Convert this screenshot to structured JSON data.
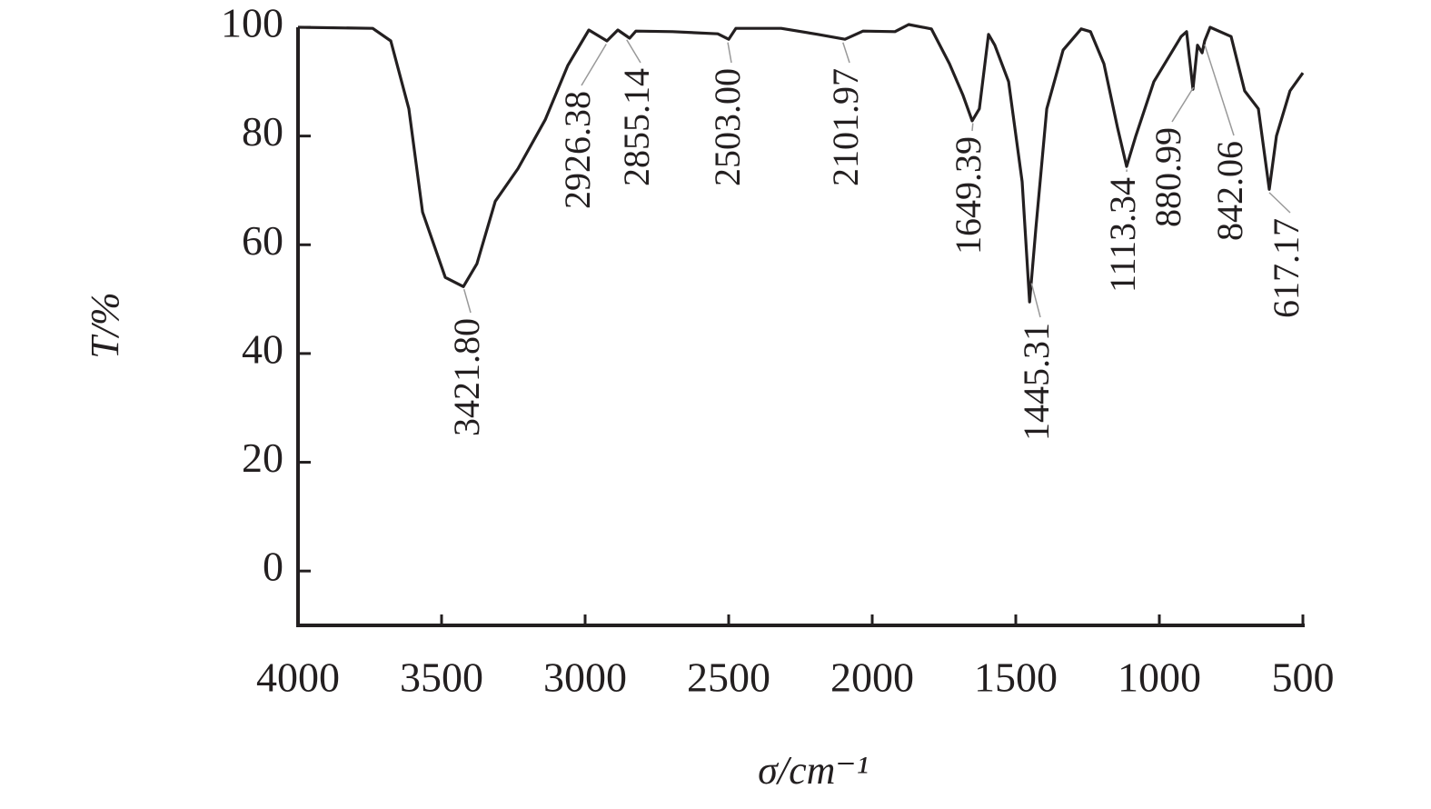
{
  "chart_data": {
    "type": "line",
    "xlabel": "σ/cm⁻¹",
    "ylabel": "T/%",
    "xlim": [
      4000,
      500
    ],
    "ylim": [
      -10,
      100
    ],
    "xticks": [
      4000,
      3500,
      3000,
      2500,
      2000,
      1500,
      1000,
      500
    ],
    "yticks": [
      0,
      20,
      40,
      60,
      80,
      100
    ],
    "color": "#231f20",
    "x": [
      4000,
      3740,
      3677,
      3614,
      3566,
      3487,
      3424,
      3377,
      3313,
      3234,
      3139,
      3060,
      2987,
      2924,
      2886,
      2845,
      2823,
      2696,
      2538,
      2500,
      2475,
      2317,
      2190,
      2095,
      2032,
      1921,
      1873,
      1794,
      1731,
      1684,
      1652,
      1627,
      1595,
      1573,
      1525,
      1478,
      1452,
      1430,
      1392,
      1335,
      1272,
      1240,
      1193,
      1146,
      1114,
      1082,
      1019,
      924,
      905,
      883,
      867,
      851,
      842,
      823,
      750,
      703,
      655,
      617,
      592,
      545,
      500
    ],
    "values": [
      100,
      99.8,
      97.5,
      85,
      66,
      54,
      52.3,
      56.5,
      68,
      74,
      83,
      93,
      99.5,
      97.5,
      99.5,
      98,
      99.3,
      99.2,
      98.8,
      97.8,
      99.8,
      99.8,
      98.7,
      97.8,
      99.3,
      99.2,
      100.5,
      99.7,
      93.3,
      87.5,
      82.8,
      85,
      98.7,
      96.7,
      90,
      71.6,
      49.5,
      63,
      85,
      95.8,
      99.7,
      99.2,
      93.3,
      81.6,
      74.4,
      80,
      90,
      98.3,
      99.2,
      88.6,
      96.7,
      95.3,
      97.5,
      100,
      98.3,
      88.3,
      85,
      70.2,
      80,
      88.3,
      91.6
    ],
    "peaks": [
      {
        "value": 3421.8,
        "label": "3421.80"
      },
      {
        "value": 2926.38,
        "label": "2926.38"
      },
      {
        "value": 2855.14,
        "label": "2855.14"
      },
      {
        "value": 2503.0,
        "label": "2503.00"
      },
      {
        "value": 2101.97,
        "label": "2101.97"
      },
      {
        "value": 1649.39,
        "label": "1649.39"
      },
      {
        "value": 1445.31,
        "label": "1445.31"
      },
      {
        "value": 1113.34,
        "label": "1113.34"
      },
      {
        "value": 880.99,
        "label": "880.99"
      },
      {
        "value": 842.06,
        "label": "842.06"
      },
      {
        "value": 617.17,
        "label": "617.17"
      }
    ]
  }
}
